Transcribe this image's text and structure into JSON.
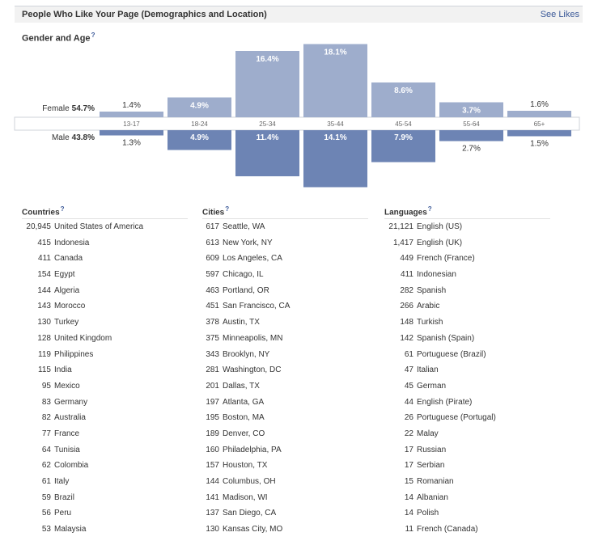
{
  "header": {
    "title": "People Who Like Your Page (Demographics and Location)",
    "see_likes": "See Likes"
  },
  "gender_age_label": "Gender and Age",
  "help_mark": "?",
  "female": {
    "label": "Female",
    "percent": "54.7%"
  },
  "male": {
    "label": "Male",
    "percent": "43.8%"
  },
  "colors": {
    "female_bar": "#9eadcc",
    "male_bar": "#6d84b4",
    "link": "#3b5998"
  },
  "chart_data": {
    "type": "bar",
    "title": "Gender and Age",
    "categories": [
      "13-17",
      "18-24",
      "25-34",
      "35-44",
      "45-54",
      "55-64",
      "65+"
    ],
    "series": [
      {
        "name": "Female",
        "values": [
          1.4,
          4.9,
          16.4,
          18.1,
          8.6,
          3.7,
          1.6
        ],
        "labels": [
          "1.4%",
          "4.9%",
          "16.4%",
          "18.1%",
          "8.6%",
          "3.7%",
          "1.6%"
        ]
      },
      {
        "name": "Male",
        "values": [
          1.3,
          4.9,
          11.4,
          14.1,
          7.9,
          2.7,
          1.5
        ],
        "labels": [
          "1.3%",
          "4.9%",
          "11.4%",
          "14.1%",
          "7.9%",
          "2.7%",
          "1.5%"
        ]
      }
    ]
  },
  "countries": {
    "heading": "Countries",
    "items": [
      {
        "count": "20,945",
        "name": "United States of America"
      },
      {
        "count": "415",
        "name": "Indonesia"
      },
      {
        "count": "411",
        "name": "Canada"
      },
      {
        "count": "154",
        "name": "Egypt"
      },
      {
        "count": "144",
        "name": "Algeria"
      },
      {
        "count": "143",
        "name": "Morocco"
      },
      {
        "count": "130",
        "name": "Turkey"
      },
      {
        "count": "128",
        "name": "United Kingdom"
      },
      {
        "count": "119",
        "name": "Philippines"
      },
      {
        "count": "115",
        "name": "India"
      },
      {
        "count": "95",
        "name": "Mexico"
      },
      {
        "count": "83",
        "name": "Germany"
      },
      {
        "count": "82",
        "name": "Australia"
      },
      {
        "count": "77",
        "name": "France"
      },
      {
        "count": "64",
        "name": "Tunisia"
      },
      {
        "count": "62",
        "name": "Colombia"
      },
      {
        "count": "61",
        "name": "Italy"
      },
      {
        "count": "59",
        "name": "Brazil"
      },
      {
        "count": "56",
        "name": "Peru"
      },
      {
        "count": "53",
        "name": "Malaysia"
      }
    ]
  },
  "cities": {
    "heading": "Cities",
    "items": [
      {
        "count": "617",
        "name": "Seattle, WA"
      },
      {
        "count": "613",
        "name": "New York, NY"
      },
      {
        "count": "609",
        "name": "Los Angeles, CA"
      },
      {
        "count": "597",
        "name": "Chicago, IL"
      },
      {
        "count": "463",
        "name": "Portland, OR"
      },
      {
        "count": "451",
        "name": "San Francisco, CA"
      },
      {
        "count": "378",
        "name": "Austin, TX"
      },
      {
        "count": "375",
        "name": "Minneapolis, MN"
      },
      {
        "count": "343",
        "name": "Brooklyn, NY"
      },
      {
        "count": "281",
        "name": "Washington, DC"
      },
      {
        "count": "201",
        "name": "Dallas, TX"
      },
      {
        "count": "197",
        "name": "Atlanta, GA"
      },
      {
        "count": "195",
        "name": "Boston, MA"
      },
      {
        "count": "189",
        "name": "Denver, CO"
      },
      {
        "count": "160",
        "name": "Philadelphia, PA"
      },
      {
        "count": "157",
        "name": "Houston, TX"
      },
      {
        "count": "144",
        "name": "Columbus, OH"
      },
      {
        "count": "141",
        "name": "Madison, WI"
      },
      {
        "count": "137",
        "name": "San Diego, CA"
      },
      {
        "count": "130",
        "name": "Kansas City, MO"
      }
    ]
  },
  "languages": {
    "heading": "Languages",
    "items": [
      {
        "count": "21,121",
        "name": "English (US)"
      },
      {
        "count": "1,417",
        "name": "English (UK)"
      },
      {
        "count": "449",
        "name": "French (France)"
      },
      {
        "count": "411",
        "name": "Indonesian"
      },
      {
        "count": "282",
        "name": "Spanish"
      },
      {
        "count": "266",
        "name": "Arabic"
      },
      {
        "count": "148",
        "name": "Turkish"
      },
      {
        "count": "142",
        "name": "Spanish (Spain)"
      },
      {
        "count": "61",
        "name": "Portuguese (Brazil)"
      },
      {
        "count": "47",
        "name": "Italian"
      },
      {
        "count": "45",
        "name": "German"
      },
      {
        "count": "44",
        "name": "English (Pirate)"
      },
      {
        "count": "26",
        "name": "Portuguese (Portugal)"
      },
      {
        "count": "22",
        "name": "Malay"
      },
      {
        "count": "17",
        "name": "Russian"
      },
      {
        "count": "17",
        "name": "Serbian"
      },
      {
        "count": "15",
        "name": "Romanian"
      },
      {
        "count": "14",
        "name": "Albanian"
      },
      {
        "count": "14",
        "name": "Polish"
      },
      {
        "count": "11",
        "name": "French (Canada)"
      }
    ]
  }
}
